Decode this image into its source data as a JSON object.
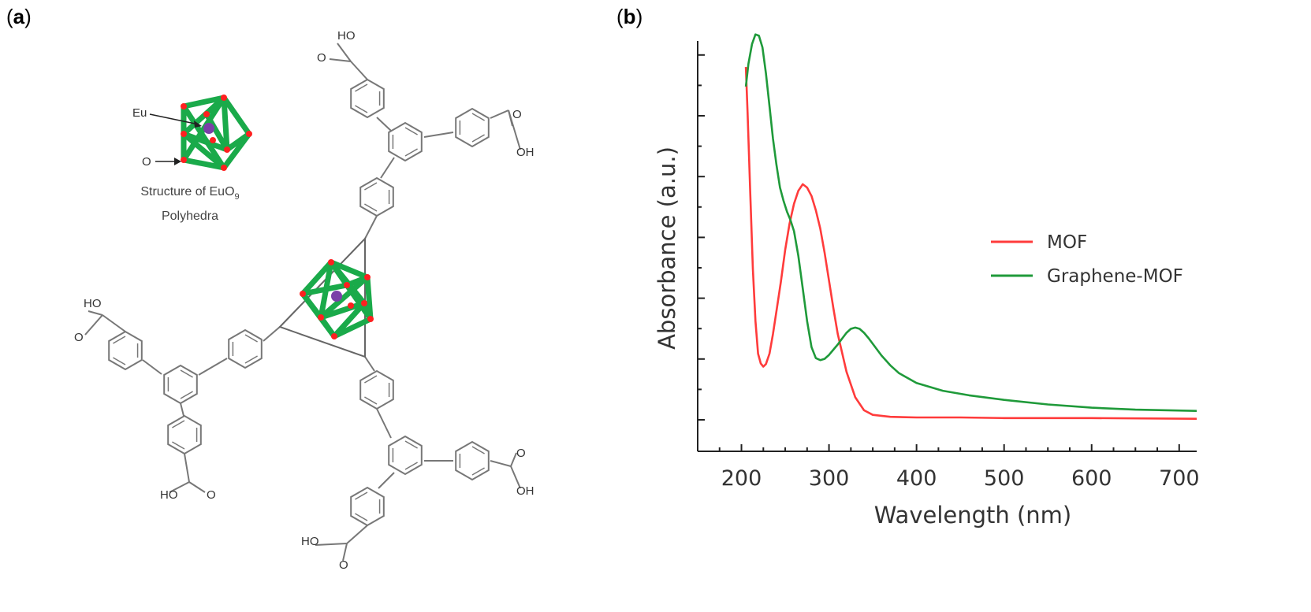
{
  "panels": {
    "a_label": "a",
    "b_label": "b"
  },
  "structure": {
    "inset_title_line1": "Structure of EuO",
    "inset_title_sub": "9",
    "inset_title_line2": "Polyhedra",
    "eu_label": "Eu",
    "o_label": "O",
    "cooh_label_ho": "HO",
    "cooh_label_oh": "OH",
    "cooh_label_o": "O",
    "colors": {
      "polyhedron": "#1aaa4a",
      "oxygen": "#ff2020",
      "europium": "#7b3fa8",
      "ligand": "#777777"
    }
  },
  "chart_data": {
    "type": "line",
    "xlabel": "Wavelength (nm)",
    "ylabel": "Absorbance (a.u.)",
    "xlim": [
      150,
      720
    ],
    "ylim": [
      -0.5,
      5.8
    ],
    "xticks": [
      200,
      300,
      400,
      500,
      600,
      700
    ],
    "xtick_labels": [
      "200",
      "300",
      "400",
      "500",
      "600",
      "700"
    ],
    "y_tick_labels_shown": false,
    "legend_position": "right",
    "series": [
      {
        "name": "MOF",
        "color": "#ff3b3b",
        "x": [
          205,
          207,
          210,
          213,
          216,
          219,
          222,
          225,
          228,
          232,
          236,
          240,
          245,
          250,
          255,
          260,
          265,
          270,
          275,
          280,
          285,
          290,
          295,
          300,
          305,
          310,
          320,
          330,
          340,
          350,
          370,
          400,
          450,
          500,
          600,
          720
        ],
        "y": [
          5.4,
          4.7,
          3.5,
          2.3,
          1.5,
          1.0,
          0.85,
          0.8,
          0.84,
          1.0,
          1.3,
          1.65,
          2.1,
          2.6,
          3.0,
          3.3,
          3.5,
          3.6,
          3.55,
          3.42,
          3.2,
          2.92,
          2.55,
          2.12,
          1.7,
          1.3,
          0.72,
          0.33,
          0.13,
          0.06,
          0.03,
          0.02,
          0.02,
          0.01,
          0.01,
          0.0
        ]
      },
      {
        "name": "Graphene-MOF",
        "color": "#1f9a3a",
        "x": [
          205,
          208,
          212,
          216,
          220,
          224,
          228,
          232,
          236,
          240,
          244,
          248,
          252,
          256,
          260,
          265,
          270,
          275,
          280,
          285,
          290,
          295,
          300,
          305,
          310,
          315,
          320,
          325,
          330,
          335,
          340,
          345,
          350,
          360,
          370,
          380,
          400,
          430,
          460,
          500,
          550,
          600,
          650,
          720
        ],
        "y": [
          5.1,
          5.45,
          5.75,
          5.9,
          5.88,
          5.7,
          5.3,
          4.8,
          4.3,
          3.9,
          3.55,
          3.35,
          3.18,
          3.05,
          2.88,
          2.5,
          2.0,
          1.5,
          1.1,
          0.93,
          0.9,
          0.92,
          0.98,
          1.06,
          1.14,
          1.23,
          1.32,
          1.38,
          1.4,
          1.38,
          1.32,
          1.24,
          1.15,
          0.97,
          0.82,
          0.7,
          0.55,
          0.43,
          0.36,
          0.29,
          0.22,
          0.17,
          0.14,
          0.12
        ]
      }
    ]
  }
}
